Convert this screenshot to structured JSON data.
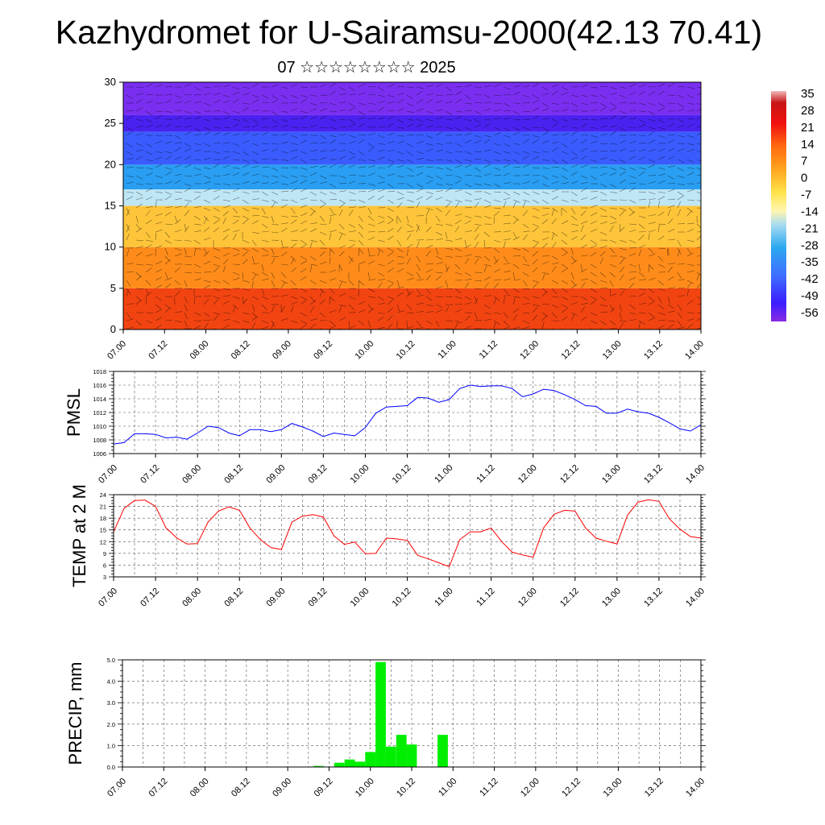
{
  "title": "Kazhydromet for U-Sairamsu-2000(42.13 70.41)",
  "subtitle": "07 ☆☆☆☆☆☆☆☆ 2025",
  "colors": {
    "pmsl_line": "#0000ff",
    "temp_line": "#ff0000",
    "precip_bar": "#00ee00",
    "grid": "#555555"
  },
  "time_ticks": [
    "07.00",
    "07.12",
    "08.00",
    "08.12",
    "09.00",
    "09.12",
    "10.00",
    "10.12",
    "11.00",
    "11.12",
    "12.00",
    "12.12",
    "13.00",
    "13.12",
    "14.00"
  ],
  "colorbar": {
    "labels": [
      "35",
      "28",
      "21",
      "14",
      "7",
      "0",
      "-7",
      "-14",
      "-21",
      "-28",
      "-35",
      "-42",
      "-49",
      "-56"
    ]
  },
  "chart_data": [
    {
      "type": "heatmap",
      "title": "Kazhydromet for U-Sairamsu-2000(42.13 70.41)",
      "subtitle": "07 ☆☆☆☆☆☆☆☆ 2025",
      "ylabel": "",
      "ylim": [
        0,
        30
      ],
      "yticks": [
        "0",
        "5",
        "10",
        "15",
        "20",
        "25",
        "30"
      ],
      "xticks": [
        "07.00",
        "07.12",
        "08.00",
        "08.12",
        "09.00",
        "09.12",
        "10.00",
        "10.12",
        "11.00",
        "11.12",
        "12.00",
        "12.12",
        "13.00",
        "13.12",
        "14.00"
      ],
      "colorbar_range": [
        -56,
        35
      ],
      "bands": [
        {
          "level_from": 0,
          "level_to": 5,
          "value": 20
        },
        {
          "level_from": 5,
          "level_to": 10,
          "value": 10
        },
        {
          "level_from": 10,
          "level_to": 15,
          "value": 0
        },
        {
          "level_from": 15,
          "level_to": 17,
          "value": -14
        },
        {
          "level_from": 17,
          "level_to": 20,
          "value": -28
        },
        {
          "level_from": 20,
          "level_to": 24,
          "value": -42
        },
        {
          "level_from": 24,
          "level_to": 26,
          "value": -56
        },
        {
          "level_from": 26,
          "level_to": 30,
          "value": -49
        }
      ]
    },
    {
      "type": "line",
      "ylabel": "PMSL",
      "ylim": [
        1006,
        1018
      ],
      "yticks": [
        "1006",
        "1008",
        "1010",
        "1012",
        "1014",
        "1016",
        "1018"
      ],
      "xticks": [
        "07.00",
        "07.12",
        "08.00",
        "08.12",
        "09.00",
        "09.12",
        "10.00",
        "10.12",
        "11.00",
        "11.12",
        "12.00",
        "12.12",
        "13.00",
        "13.12",
        "14.00"
      ],
      "series": [
        {
          "x": [
            0,
            0.125,
            0.25,
            0.375,
            0.5,
            0.625,
            0.75,
            0.875,
            1,
            1.125,
            1.25,
            1.375,
            1.5,
            1.625,
            1.75,
            1.875,
            2,
            2.125,
            2.25,
            2.375,
            2.5,
            2.625,
            2.75,
            2.875,
            3,
            3.125,
            3.25,
            3.375,
            3.5,
            3.625,
            3.75,
            3.875,
            4,
            4.125,
            4.25,
            4.375,
            4.5,
            4.625,
            4.75,
            4.875,
            5,
            5.125,
            5.25,
            5.375,
            5.5,
            5.625,
            5.75,
            5.875,
            6,
            6.125,
            6.25,
            6.375,
            6.5,
            6.625,
            6.75,
            6.875,
            7
          ],
          "values": [
            1007.4,
            1007.6,
            1008.9,
            1008.9,
            1008.8,
            1008.3,
            1008.4,
            1008.1,
            1009.0,
            1010.0,
            1009.8,
            1009.0,
            1008.6,
            1009.5,
            1009.5,
            1009.2,
            1009.5,
            1010.4,
            1009.9,
            1009.3,
            1008.5,
            1009.0,
            1008.8,
            1008.6,
            1009.8,
            1011.9,
            1012.8,
            1012.9,
            1013.0,
            1014.2,
            1014.1,
            1013.5,
            1013.9,
            1015.5,
            1016.0,
            1015.8,
            1015.9,
            1015.9,
            1015.5,
            1014.3,
            1014.7,
            1015.4,
            1015.2,
            1014.6,
            1013.9,
            1013.0,
            1012.9,
            1011.9,
            1011.9,
            1012.5,
            1012.1,
            1011.9,
            1011.3,
            1010.5,
            1009.6,
            1009.3,
            1010.2
          ]
        }
      ]
    },
    {
      "type": "line",
      "ylabel": "TEMP at 2 M",
      "ylim": [
        3,
        24
      ],
      "yticks": [
        "3",
        "6",
        "9",
        "12",
        "15",
        "18",
        "21",
        "24"
      ],
      "xticks": [
        "07.00",
        "07.12",
        "08.00",
        "08.12",
        "09.00",
        "09.12",
        "10.00",
        "10.12",
        "11.00",
        "11.12",
        "12.00",
        "12.12",
        "13.00",
        "13.12",
        "14.00"
      ],
      "series": [
        {
          "x": [
            0,
            0.125,
            0.25,
            0.375,
            0.5,
            0.625,
            0.75,
            0.875,
            1,
            1.125,
            1.25,
            1.375,
            1.5,
            1.625,
            1.75,
            1.875,
            2,
            2.125,
            2.25,
            2.375,
            2.5,
            2.625,
            2.75,
            2.875,
            3,
            3.125,
            3.25,
            3.375,
            3.5,
            3.625,
            3.75,
            3.875,
            4,
            4.125,
            4.25,
            4.375,
            4.5,
            4.625,
            4.75,
            4.875,
            5,
            5.125,
            5.25,
            5.375,
            5.5,
            5.625,
            5.75,
            5.875,
            6,
            6.125,
            6.25,
            6.375,
            6.5,
            6.625,
            6.75,
            6.875,
            7
          ],
          "values": [
            14.5,
            20.5,
            22.5,
            22.6,
            21.0,
            15.5,
            13.0,
            11.4,
            11.5,
            17.0,
            19.8,
            20.9,
            20.0,
            15.5,
            12.5,
            10.5,
            10.0,
            17.0,
            18.5,
            18.9,
            18.3,
            13.5,
            11.3,
            11.9,
            8.9,
            9.0,
            12.9,
            12.7,
            12.3,
            8.5,
            7.6,
            6.6,
            5.6,
            12.5,
            14.5,
            14.5,
            15.5,
            12.0,
            9.3,
            8.6,
            8.0,
            15.5,
            19.0,
            20.0,
            19.8,
            15.5,
            12.9,
            12.1,
            11.4,
            18.8,
            22.1,
            22.7,
            22.3,
            17.8,
            15.2,
            13.3,
            12.9
          ]
        }
      ]
    },
    {
      "type": "bar",
      "ylabel": "PRECIP, mm",
      "ylim": [
        0,
        5
      ],
      "yticks": [
        "0.0",
        "1.0",
        "2.0",
        "3.0",
        "4.0",
        "5.0"
      ],
      "xticks": [
        "07.00",
        "07.12",
        "08.00",
        "08.12",
        "09.00",
        "09.12",
        "10.00",
        "10.12",
        "11.00",
        "11.12",
        "12.00",
        "12.12",
        "13.00",
        "13.12",
        "14.00"
      ],
      "bar_width": 0.125,
      "x": [
        2.375,
        2.625,
        2.75,
        2.875,
        3.0,
        3.125,
        3.25,
        3.375,
        3.5,
        3.875
      ],
      "values": [
        0.05,
        0.2,
        0.35,
        0.25,
        0.7,
        4.9,
        0.95,
        1.5,
        1.05,
        1.5
      ]
    }
  ]
}
